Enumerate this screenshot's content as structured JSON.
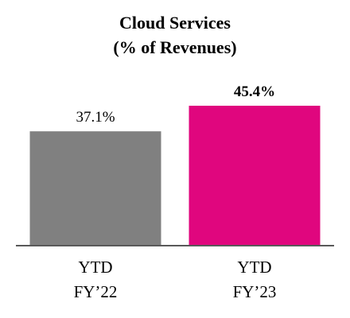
{
  "chart_data": {
    "type": "bar",
    "title_lines": [
      "Cloud Services",
      "(% of Revenues)"
    ],
    "categories": [
      [
        "YTD",
        "FY’22"
      ],
      [
        "YTD",
        "FY’23"
      ]
    ],
    "values": [
      37.1,
      45.4
    ],
    "value_labels": [
      "37.1%",
      "45.4%"
    ],
    "value_label_bold": [
      false,
      true
    ],
    "colors": [
      "#808080",
      "#E0067E"
    ],
    "ylim": [
      0,
      45.4
    ],
    "grid": false,
    "legend": "none"
  }
}
